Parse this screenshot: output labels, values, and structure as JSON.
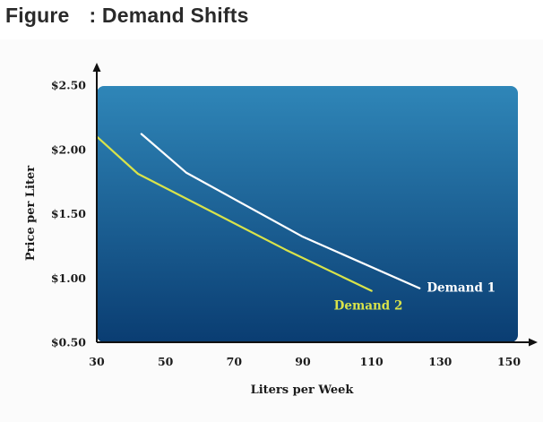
{
  "header": {
    "figure_word": "Figure",
    "title_text": ": Demand Shifts"
  },
  "colors": {
    "plot_bg_top": "#2f86b8",
    "plot_bg_bottom": "#0a3d72",
    "axis": "#111111",
    "demand1": "#ffffff",
    "demand2": "#d9e34a"
  },
  "chart_data": {
    "type": "line",
    "title": "Demand Shifts",
    "xlabel": "Liters per Week",
    "ylabel": "Price per Liter",
    "xlim": [
      30,
      150
    ],
    "ylim": [
      0.5,
      2.5
    ],
    "xticks": [
      30,
      50,
      70,
      90,
      110,
      130,
      150
    ],
    "xtick_labels": [
      "30",
      "50",
      "70",
      "90",
      "110",
      "130",
      "150"
    ],
    "yticks": [
      0.5,
      1.0,
      1.5,
      2.0,
      2.5
    ],
    "ytick_labels": [
      "$0.50",
      "$1.00",
      "$1.50",
      "$2.00",
      "$2.50"
    ],
    "grid": false,
    "series": [
      {
        "name": "Demand 1",
        "color": "#ffffff",
        "points": [
          [
            43,
            2.12
          ],
          [
            56,
            1.82
          ],
          [
            90,
            1.32
          ],
          [
            124,
            0.92
          ]
        ]
      },
      {
        "name": "Demand 2",
        "color": "#d9e34a",
        "points": [
          [
            30,
            2.1
          ],
          [
            42,
            1.81
          ],
          [
            85,
            1.22
          ],
          [
            110,
            0.9
          ]
        ]
      }
    ]
  }
}
